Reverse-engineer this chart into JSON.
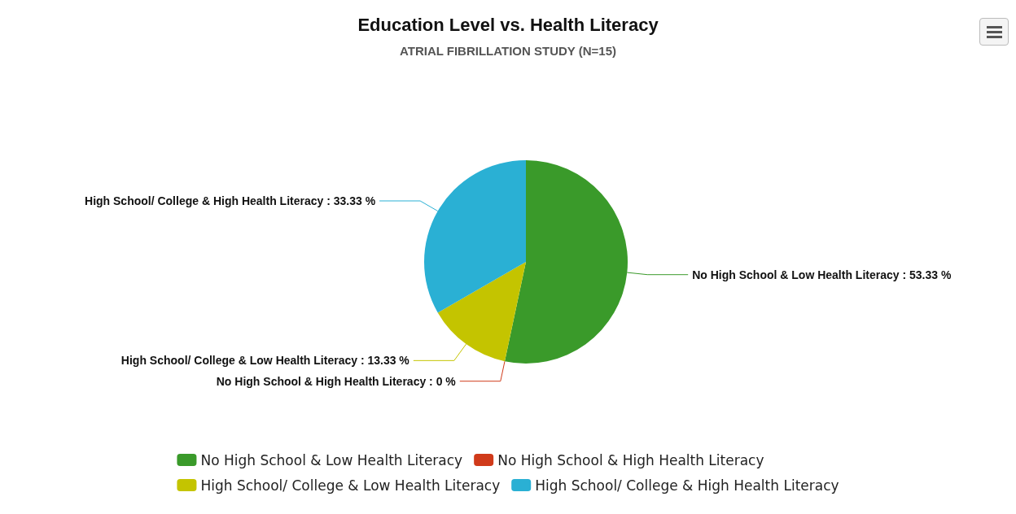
{
  "chart_data": {
    "type": "pie",
    "title": "Education Level vs. Health Literacy",
    "subtitle": "ATRIAL FIBRILLATION STUDY (N=15)",
    "categories": [
      "No High School & Low Health Literacy",
      "No High School & High Health Literacy",
      "High School/ College & Low Health Literacy",
      "High School/ College & High Health Literacy"
    ],
    "values": [
      53.33,
      0,
      13.33,
      33.33
    ],
    "colors": [
      "#3a9a2a",
      "#d03a1a",
      "#c4c400",
      "#2ab0d4"
    ],
    "value_labels": [
      ": 53.33 %",
      ": 0 %",
      ": 13.33 %",
      ": 33.33 %"
    ],
    "legend": "bottom"
  }
}
